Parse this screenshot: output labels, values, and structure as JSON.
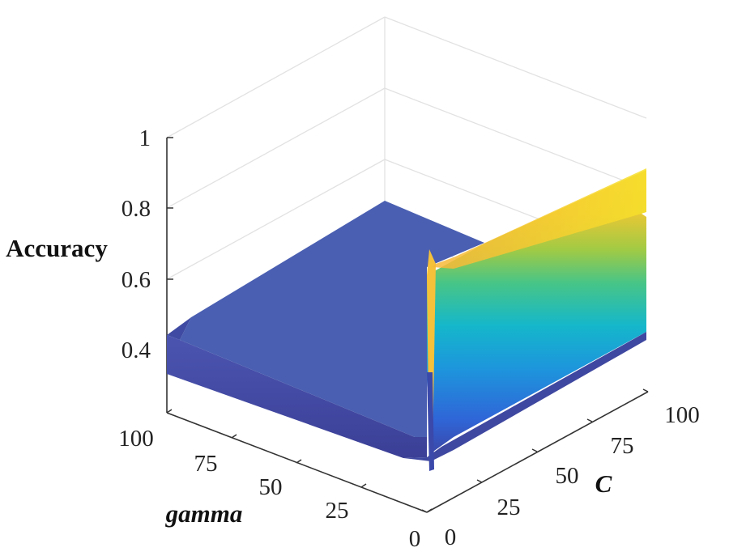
{
  "chart_data": {
    "type": "surface3d",
    "zlabel": "Accuracy",
    "xlabel": "gamma",
    "ylabel": "C",
    "zlim": [
      0.2,
      1.0
    ],
    "xlim": [
      0,
      100
    ],
    "ylim": [
      0,
      100
    ],
    "z_ticks": [
      "0.4",
      "0.6",
      "0.8",
      "1"
    ],
    "gamma_ticks": [
      "0",
      "25",
      "50",
      "75",
      "100"
    ],
    "c_ticks": [
      "0",
      "25",
      "50",
      "75",
      "100"
    ],
    "grid": true,
    "colormap": "parula",
    "colors": {
      "low": "#3e4fb0",
      "mid_blue": "#2a7fe0",
      "cyan": "#17b8c9",
      "green": "#7ccf4a",
      "yellow": "#f6d530",
      "orange": "#f9b136"
    },
    "surface_description": {
      "plateau_accuracy": 0.333,
      "gamma_zero_edge_accuracy": [
        0.36,
        0.93
      ]
    }
  }
}
